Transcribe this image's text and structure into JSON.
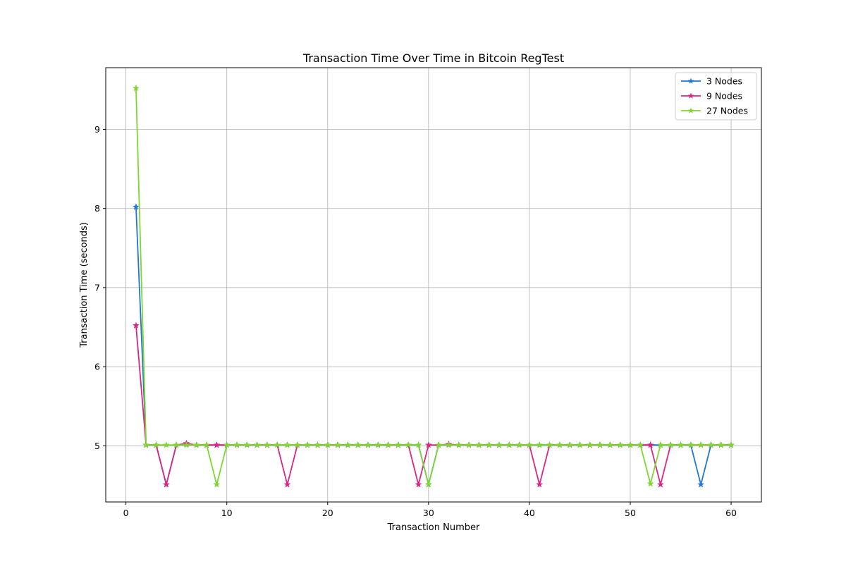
{
  "chart_data": {
    "type": "line",
    "title": "Transaction Time Over Time in Bitcoin RegTest",
    "xlabel": "Transaction Number",
    "ylabel": "Transaction Time (seconds)",
    "xlim": [
      -2,
      63
    ],
    "ylim": [
      4.29,
      9.78
    ],
    "xticks": [
      0,
      10,
      20,
      30,
      40,
      50,
      60
    ],
    "yticks": [
      5,
      6,
      7,
      8,
      9
    ],
    "grid": true,
    "legend_position": "top-right",
    "marker": "star",
    "x": [
      1,
      2,
      3,
      4,
      5,
      6,
      7,
      8,
      9,
      10,
      11,
      12,
      13,
      14,
      15,
      16,
      17,
      18,
      19,
      20,
      21,
      22,
      23,
      24,
      25,
      26,
      27,
      28,
      29,
      30,
      31,
      32,
      33,
      34,
      35,
      36,
      37,
      38,
      39,
      40,
      41,
      42,
      43,
      44,
      45,
      46,
      47,
      48,
      49,
      50,
      51,
      52,
      53,
      54,
      55,
      56,
      57,
      58,
      59,
      60
    ],
    "series": [
      {
        "name": "3 Nodes",
        "color": "#1f77d4",
        "values": [
          8.02,
          5.01,
          5.01,
          4.51,
          5.01,
          5.02,
          5.01,
          5.01,
          5.01,
          5.01,
          5.01,
          5.01,
          5.01,
          5.01,
          5.01,
          5.01,
          5.01,
          5.01,
          5.01,
          5.01,
          5.01,
          5.01,
          5.01,
          5.01,
          5.01,
          5.01,
          5.01,
          5.01,
          5.01,
          4.51,
          5.01,
          5.01,
          5.01,
          5.01,
          5.01,
          5.01,
          5.01,
          5.01,
          5.01,
          5.01,
          5.01,
          5.01,
          5.01,
          5.01,
          5.01,
          5.01,
          5.01,
          5.01,
          5.01,
          5.01,
          5.01,
          5.01,
          5.01,
          5.01,
          5.01,
          5.01,
          4.51,
          5.01,
          5.01,
          5.01
        ]
      },
      {
        "name": "9 Nodes",
        "color": "#d62784",
        "values": [
          6.52,
          5.01,
          5.01,
          4.51,
          5.01,
          5.03,
          5.01,
          5.01,
          5.01,
          5.01,
          5.01,
          5.01,
          5.01,
          5.01,
          5.01,
          4.51,
          5.01,
          5.01,
          5.01,
          5.01,
          5.01,
          5.01,
          5.01,
          5.01,
          5.01,
          5.01,
          5.01,
          5.01,
          4.51,
          5.01,
          5.01,
          5.02,
          5.01,
          5.01,
          5.01,
          5.01,
          5.01,
          5.01,
          5.01,
          5.01,
          4.51,
          5.01,
          5.01,
          5.01,
          5.01,
          5.01,
          5.01,
          5.01,
          5.01,
          5.01,
          5.01,
          5.01,
          4.51,
          5.01,
          5.01,
          5.01,
          5.01,
          5.01,
          5.01,
          5.01
        ]
      },
      {
        "name": "27 Nodes",
        "color": "#7fd630",
        "values": [
          9.52,
          5.01,
          5.01,
          5.01,
          5.01,
          5.01,
          5.01,
          5.01,
          4.51,
          5.01,
          5.01,
          5.01,
          5.01,
          5.01,
          5.01,
          5.01,
          5.01,
          5.01,
          5.01,
          5.01,
          5.01,
          5.01,
          5.01,
          5.01,
          5.01,
          5.01,
          5.01,
          5.01,
          5.01,
          4.51,
          5.01,
          5.01,
          5.01,
          5.01,
          5.01,
          5.01,
          5.01,
          5.01,
          5.01,
          5.01,
          5.01,
          5.01,
          5.01,
          5.01,
          5.01,
          5.01,
          5.01,
          5.01,
          5.01,
          5.01,
          5.01,
          4.52,
          5.01,
          5.01,
          5.01,
          5.01,
          5.01,
          5.01,
          5.01,
          5.01
        ]
      }
    ]
  }
}
